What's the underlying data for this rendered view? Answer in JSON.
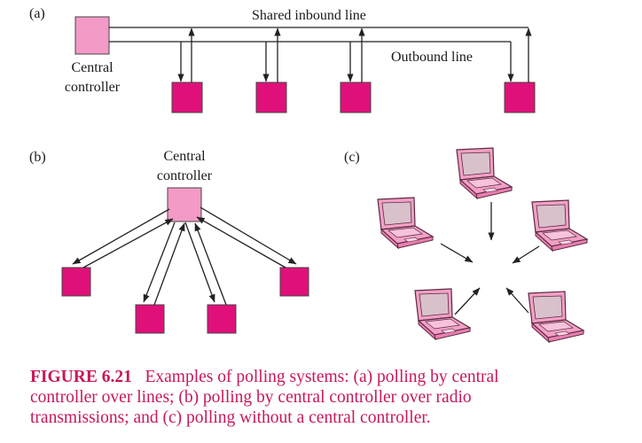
{
  "panel_a": {
    "label": "(a)",
    "inbound_label": "Shared inbound line",
    "outbound_label": "Outbound line",
    "controller_label_1": "Central",
    "controller_label_2": "controller"
  },
  "panel_b": {
    "label": "(b)",
    "controller_label_1": "Central",
    "controller_label_2": "controller"
  },
  "panel_c": {
    "label": "(c)"
  },
  "caption": {
    "number": "FIGURE 6.21",
    "line1": "Examples of polling systems: (a) polling by central",
    "line2": "controller over lines; (b) polling by central controller over radio",
    "line3": "transmissions; and (c) polling without a central controller."
  },
  "colors": {
    "controller_fill": "#f39ac6",
    "station_fill": "#e0107a",
    "laptop_body": "#f2a0c6",
    "laptop_screen": "#d9c1cc",
    "laptop_outline": "#5a2a40",
    "line": "#222222",
    "caption": "#c8175d"
  }
}
